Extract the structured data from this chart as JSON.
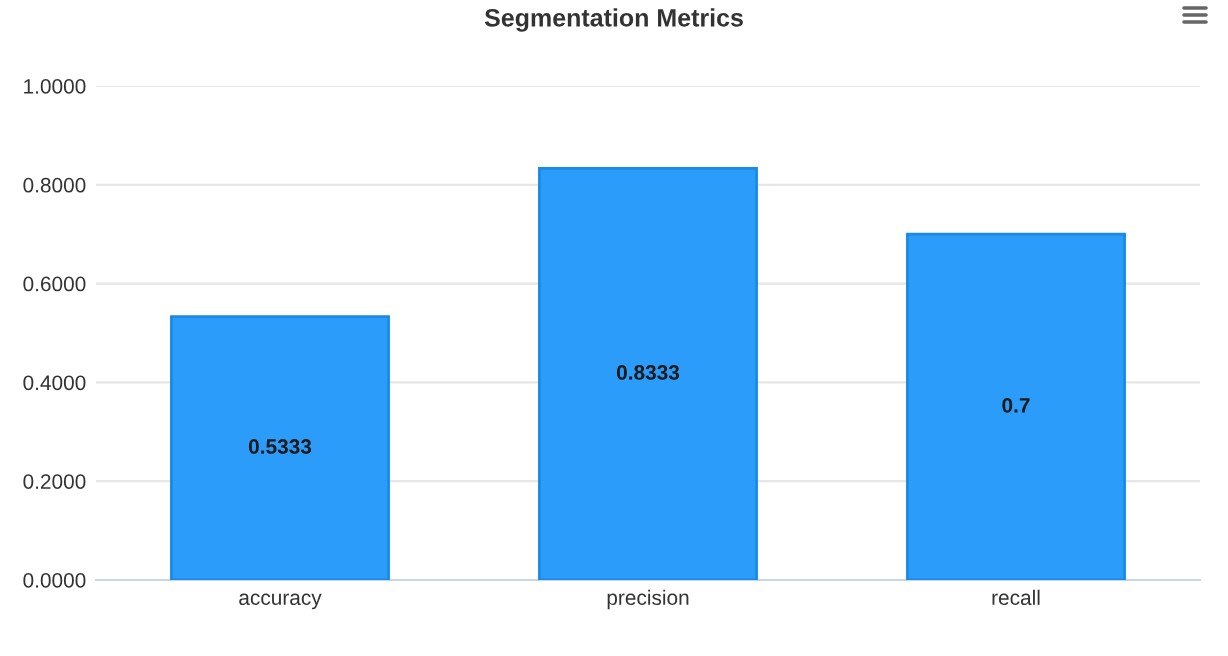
{
  "chart_data": {
    "type": "bar",
    "title": "Segmentation Metrics",
    "categories": [
      "accuracy",
      "precision",
      "recall"
    ],
    "values": [
      0.5333,
      0.8333,
      0.7
    ],
    "color": "#2b9cf9",
    "ylim": [
      0,
      1
    ],
    "yticks": [
      {
        "value": 0,
        "label": "0.0000"
      },
      {
        "value": 0.2,
        "label": "0.2000"
      },
      {
        "value": 0.4,
        "label": "0.4000"
      },
      {
        "value": 0.6,
        "label": "0.6000"
      },
      {
        "value": 0.8,
        "label": "0.8000"
      },
      {
        "value": 1,
        "label": "1.0000"
      }
    ],
    "grid": "y",
    "data_labels": true,
    "legend": false
  }
}
